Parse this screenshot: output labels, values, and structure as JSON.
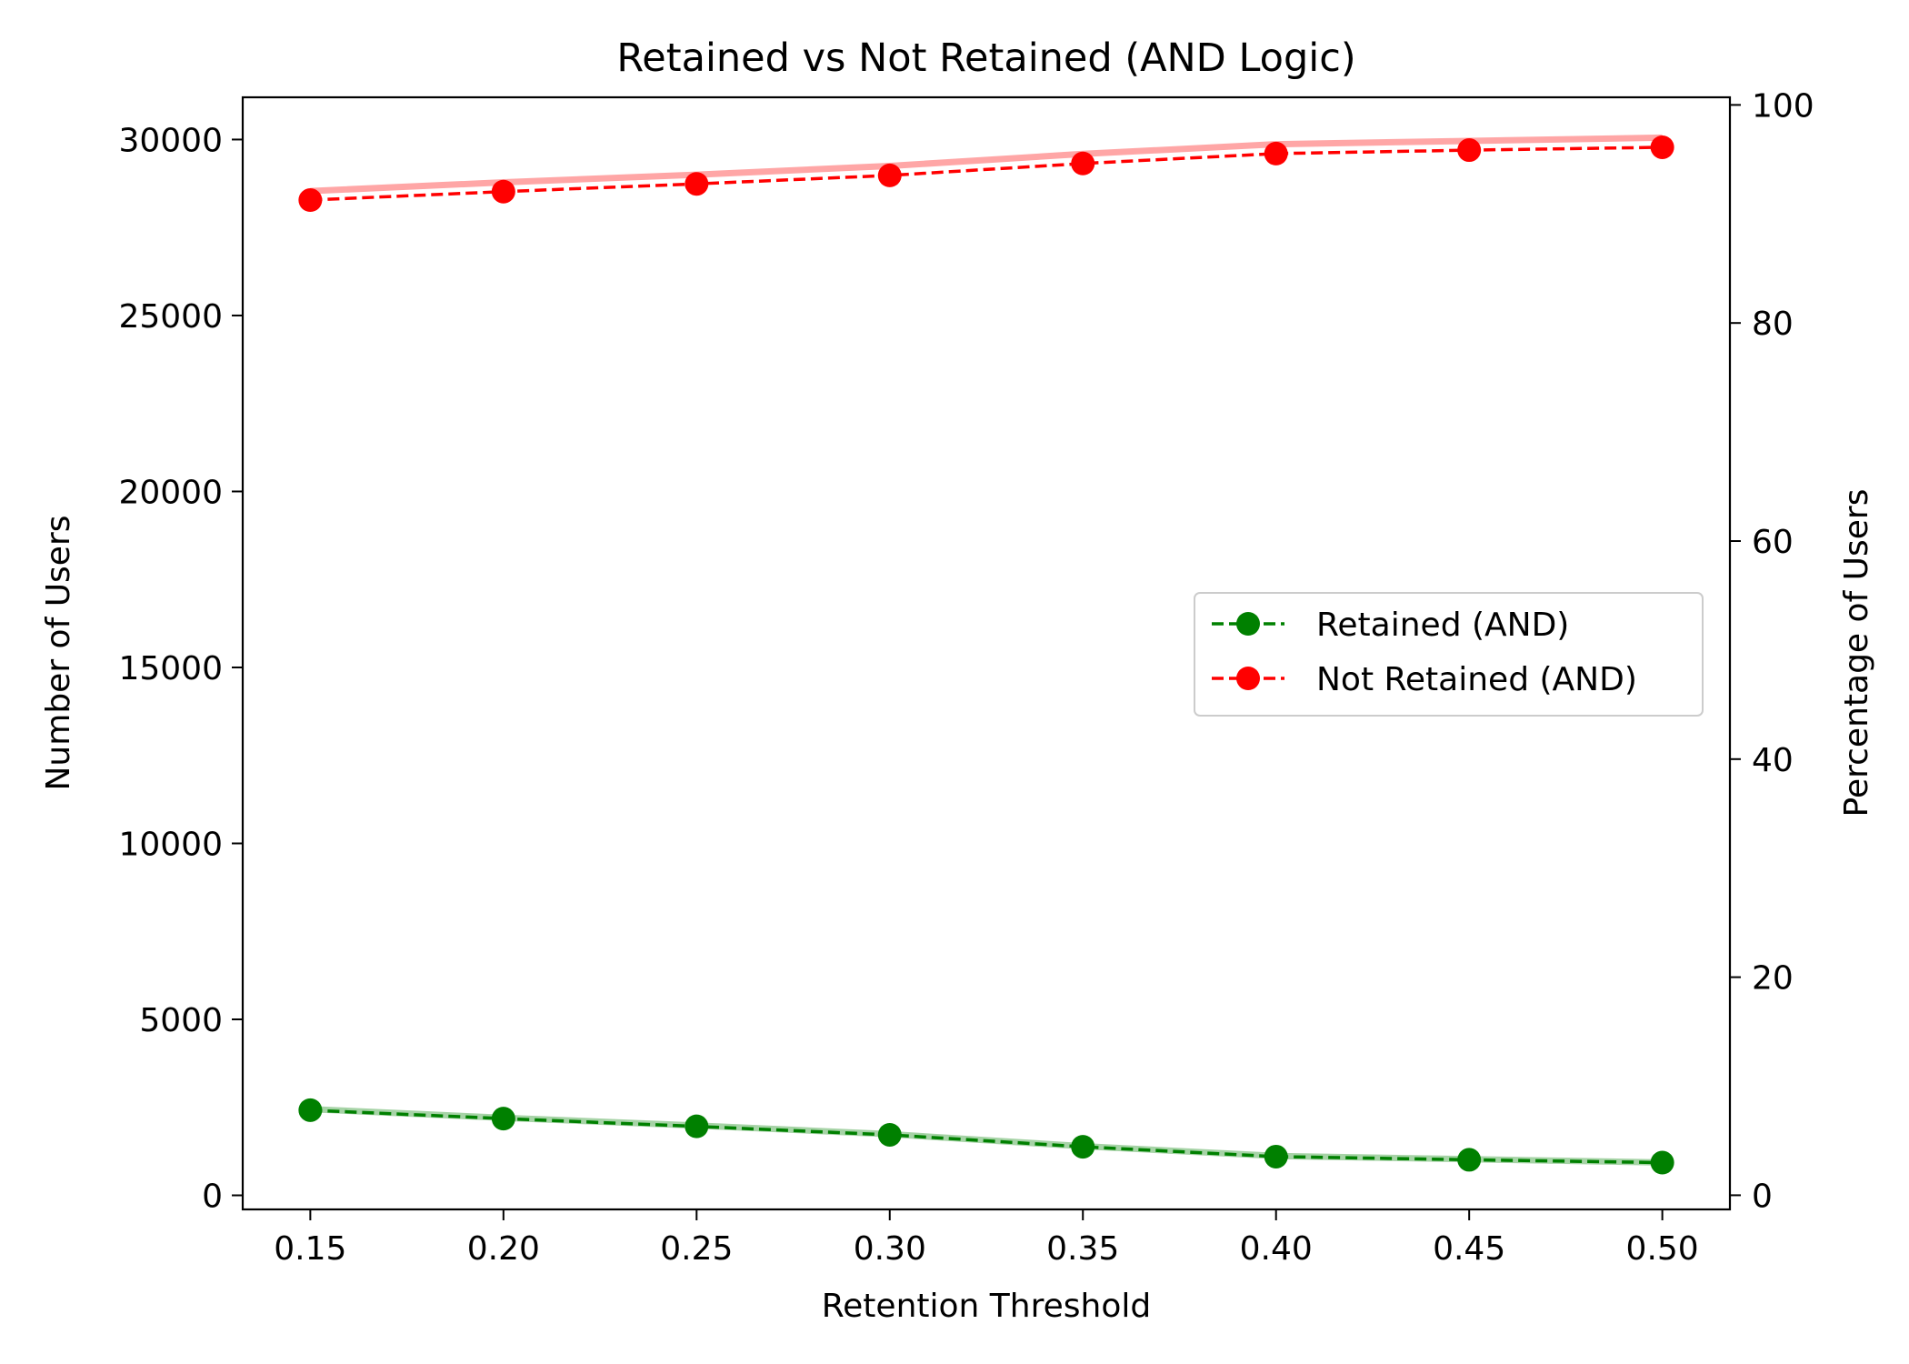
{
  "chart_data": {
    "type": "line",
    "title": "Retained vs Not Retained (AND Logic)",
    "xlabel": "Retention Threshold",
    "ylabel": "Number of Users",
    "y2label": "Percentage of Users",
    "x": [
      0.15,
      0.2,
      0.25,
      0.3,
      0.35,
      0.4,
      0.45,
      0.5
    ],
    "x_tick_labels": [
      "0.15",
      "0.20",
      "0.25",
      "0.30",
      "0.35",
      "0.40",
      "0.45",
      "0.50"
    ],
    "xlim": [
      0.1325,
      0.5175
    ],
    "ylim": [
      -400,
      31200
    ],
    "y_ticks": [
      0,
      5000,
      10000,
      15000,
      20000,
      25000,
      30000
    ],
    "y_tick_labels": [
      "0",
      "5000",
      "10000",
      "15000",
      "20000",
      "25000",
      "30000"
    ],
    "y2lim": [
      -1.3,
      100.7
    ],
    "y2_ticks": [
      0,
      20,
      40,
      60,
      80,
      100
    ],
    "y2_tick_labels": [
      "0",
      "20",
      "40",
      "60",
      "80",
      "100"
    ],
    "grid": false,
    "legend_position": "center-right",
    "series": [
      {
        "name": "Retained (AND)",
        "color": "#008000",
        "line_style": "dashed",
        "marker": "circle",
        "values": [
          2420,
          2180,
          1960,
          1720,
          1380,
          1100,
          1010,
          930
        ],
        "percent_values": [
          7.9,
          7.1,
          6.4,
          5.6,
          4.5,
          3.6,
          3.3,
          3.0
        ]
      },
      {
        "name": "Not Retained (AND)",
        "color": "#ff0000",
        "line_style": "dashed",
        "marker": "circle",
        "values": [
          28280,
          28520,
          28740,
          28980,
          29320,
          29600,
          29700,
          29780
        ],
        "percent_values": [
          92.1,
          92.9,
          93.6,
          94.4,
          95.5,
          96.4,
          96.7,
          97.0
        ]
      }
    ]
  }
}
